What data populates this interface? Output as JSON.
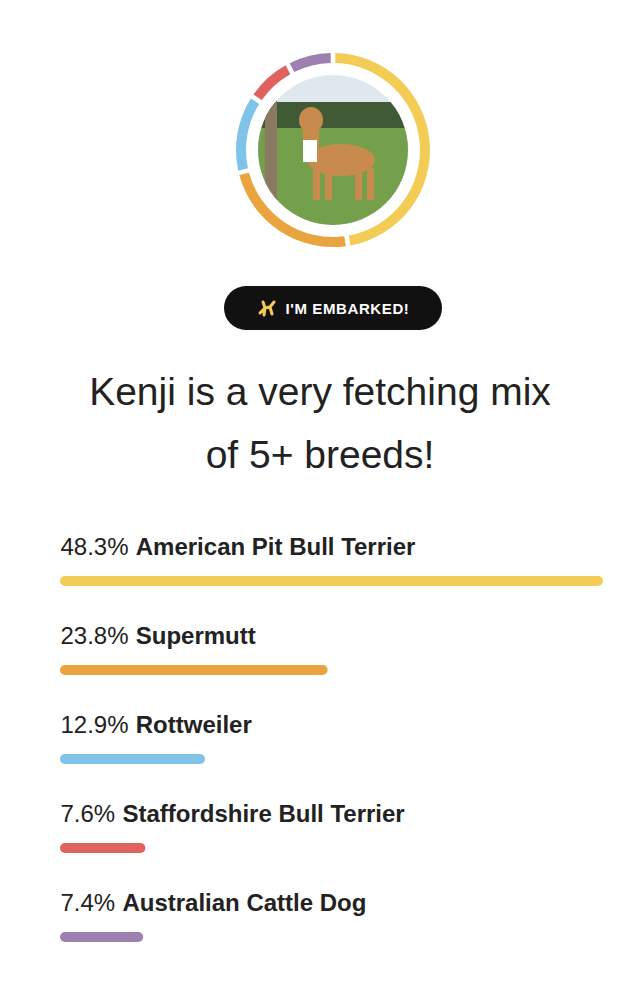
{
  "chart_data": {
    "type": "bar",
    "orientation": "horizontal",
    "title": "Kenji is a very fetching mix of 5+ breeds!",
    "annotations": [
      {
        "text": "I'M EMBARKED!"
      }
    ],
    "categories": [
      "American Pit Bull Terrier",
      "Supermutt",
      "Rottweiler",
      "Staffordshire Bull Terrier",
      "Australian Cattle Dog"
    ],
    "values": [
      48.3,
      23.8,
      12.9,
      7.6,
      7.4
    ],
    "value_labels": [
      "48.3%",
      "23.8%",
      "12.9%",
      "7.6%",
      "7.4%"
    ],
    "colors": [
      "#f2cc55",
      "#eaa43f",
      "#7fc3e8",
      "#e0625f",
      "#9c80b1"
    ],
    "xlim": [
      0,
      48.3
    ],
    "data_labels": true,
    "tick_labels": false,
    "grid": false
  }
}
